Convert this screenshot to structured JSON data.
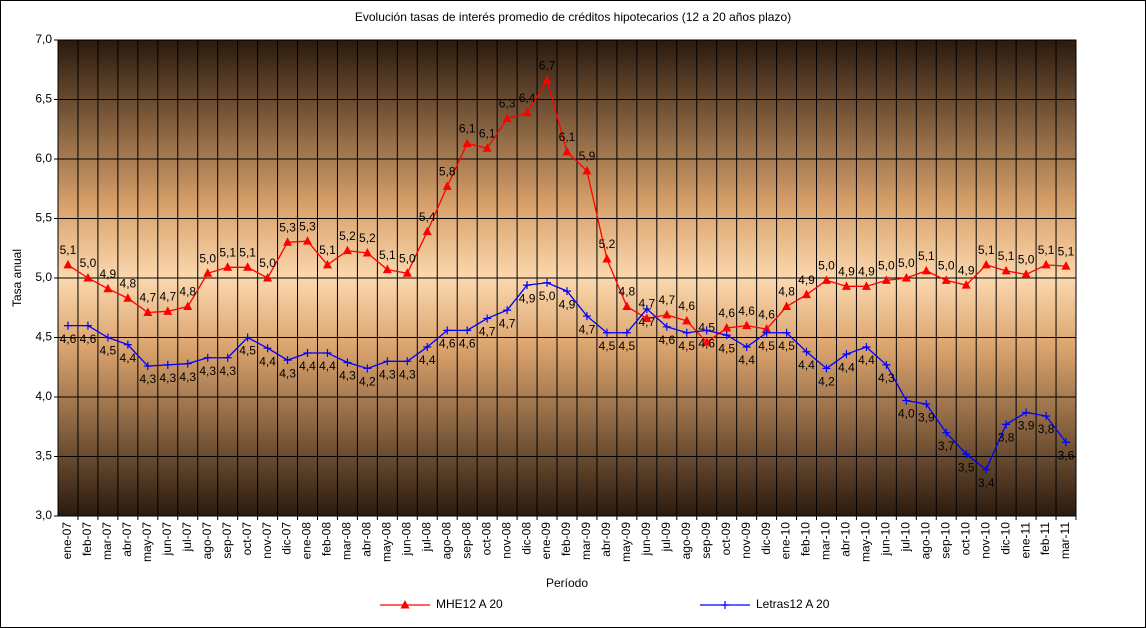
{
  "chart_data": {
    "type": "line",
    "title": "Evolución tasas de interés promedio de créditos hipotecarios (12 a 20 años plazo)",
    "x_label": "Período",
    "y_label": "Tasa anual",
    "categories": [
      "ene-07",
      "feb-07",
      "mar-07",
      "abr-07",
      "may-07",
      "jun-07",
      "jul-07",
      "ago-07",
      "sep-07",
      "oct-07",
      "nov-07",
      "dic-07",
      "ene-08",
      "feb-08",
      "mar-08",
      "abr-08",
      "may-08",
      "jun-08",
      "jul-08",
      "ago-08",
      "sep-08",
      "oct-08",
      "nov-08",
      "dic-08",
      "ene-09",
      "feb-09",
      "mar-09",
      "abr-09",
      "may-09",
      "jun-09",
      "jul-09",
      "ago-09",
      "sep-09",
      "oct-09",
      "nov-09",
      "dic-09",
      "ene-10",
      "feb-10",
      "mar-10",
      "abr-10",
      "may-10",
      "jun-10",
      "jul-10",
      "ago-10",
      "sep-10",
      "oct-10",
      "nov-10",
      "dic-10",
      "ene-11",
      "feb-11",
      "mar-11"
    ],
    "series": [
      {
        "name": "MHE12 A 20",
        "color": "#ff0000",
        "marker": "triangle",
        "values": [
          5.11,
          5.0,
          4.91,
          4.83,
          4.71,
          4.72,
          4.76,
          5.04,
          5.09,
          5.09,
          5.0,
          5.3,
          5.31,
          5.11,
          5.23,
          5.21,
          5.07,
          5.04,
          5.39,
          5.77,
          6.13,
          6.09,
          6.34,
          6.39,
          6.66,
          6.06,
          5.9,
          5.16,
          4.76,
          4.66,
          4.69,
          4.64,
          4.46,
          4.58,
          4.6,
          4.57,
          4.76,
          4.86,
          4.98,
          4.93,
          4.93,
          4.98,
          5.0,
          5.06,
          4.98,
          4.94,
          5.11,
          5.06,
          5.03,
          5.11,
          5.1
        ],
        "value_labels": [
          "5,1",
          "5,0",
          "4,9",
          "4,8",
          "4,7",
          "4,7",
          "4,8",
          "5,0",
          "5,1",
          "5,1",
          "5,0",
          "5,3",
          "5,3",
          "5,1",
          "5,2",
          "5,2",
          "5,1",
          "5,0",
          "5,4",
          "5,8",
          "6,1",
          "6,1",
          "6,3",
          "6,4",
          "6,7",
          "6,1",
          "5,9",
          "5,2",
          "4,8",
          "4,7",
          "4,7",
          "4,6",
          "4,5",
          "4,6",
          "4,6",
          "4,6",
          "4,8",
          "4,9",
          "5,0",
          "4,9",
          "4,9",
          "5,0",
          "5,0",
          "5,1",
          "5,0",
          "4,9",
          "5,1",
          "5,1",
          "5,0",
          "5,1",
          "5,1"
        ]
      },
      {
        "name": "Letras12 A 20",
        "color": "#0000ff",
        "marker": "plus",
        "values": [
          4.6,
          4.6,
          4.5,
          4.44,
          4.26,
          4.27,
          4.28,
          4.33,
          4.33,
          4.5,
          4.41,
          4.31,
          4.37,
          4.37,
          4.29,
          4.24,
          4.3,
          4.3,
          4.42,
          4.56,
          4.56,
          4.66,
          4.73,
          4.94,
          4.96,
          4.89,
          4.68,
          4.54,
          4.54,
          4.74,
          4.59,
          4.54,
          4.56,
          4.52,
          4.42,
          4.54,
          4.54,
          4.38,
          4.24,
          4.36,
          4.42,
          4.27,
          3.97,
          3.94,
          3.7,
          3.52,
          3.39,
          3.77,
          3.87,
          3.84,
          3.62
        ],
        "value_labels": [
          "4,6",
          "4,6",
          "4,5",
          "4,4",
          "4,3",
          "4,3",
          "4,3",
          "4,3",
          "4,3",
          "4,5",
          "4,4",
          "4,3",
          "4,4",
          "4,4",
          "4,3",
          "4,2",
          "4,3",
          "4,3",
          "4,4",
          "4,6",
          "4,6",
          "4,7",
          "4,7",
          "4,9",
          "5,0",
          "4,9",
          "4,7",
          "4,5",
          "4,5",
          "4,7",
          "4,6",
          "4,5",
          "4,6",
          "4,5",
          "4,4",
          "4,5",
          "4,5",
          "4,4",
          "4,2",
          "4,4",
          "4,4",
          "4,3",
          "4,0",
          "3,9",
          "3,7",
          "3,5",
          "3,4",
          "3,8",
          "3,9",
          "3,8",
          "3,6"
        ]
      }
    ],
    "ylim": [
      3.0,
      7.0
    ],
    "yticks": [
      {
        "value": 3.0,
        "label": "3,0"
      },
      {
        "value": 3.5,
        "label": "3,5"
      },
      {
        "value": 4.0,
        "label": "4,0"
      },
      {
        "value": 4.5,
        "label": "4,5"
      },
      {
        "value": 5.0,
        "label": "5,0"
      },
      {
        "value": 5.5,
        "label": "5,5"
      },
      {
        "value": 6.0,
        "label": "6,0"
      },
      {
        "value": 6.5,
        "label": "6,5"
      },
      {
        "value": 7.0,
        "label": "7,0"
      }
    ],
    "grid": true,
    "legend": "bottom"
  }
}
